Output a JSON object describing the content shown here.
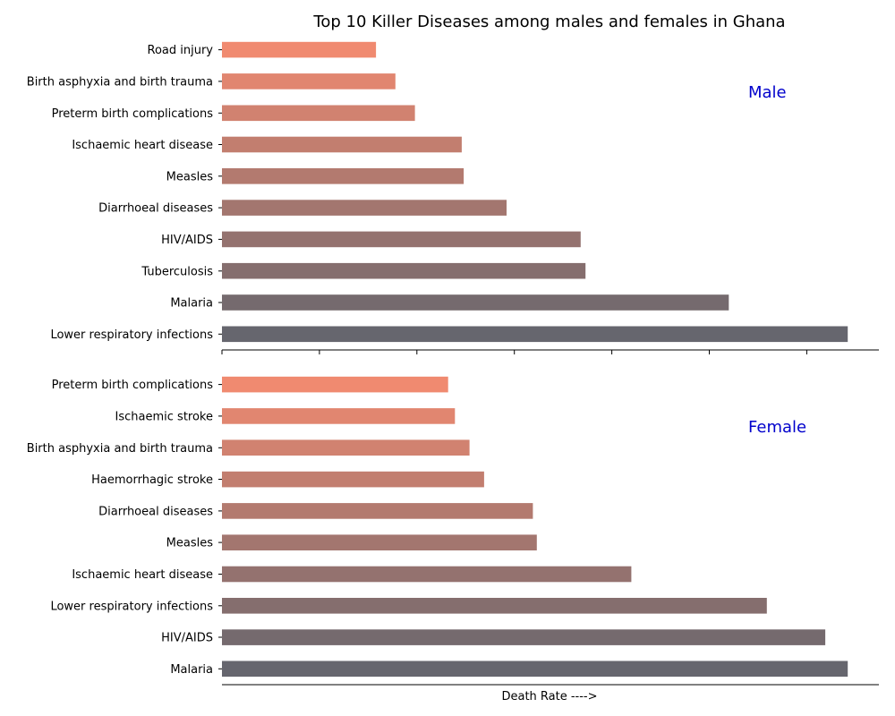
{
  "chart_data": {
    "type": "bar",
    "orientation": "horizontal",
    "title": "Top 10 Killer Diseases among males and females in Ghana",
    "xlabel": "Death Rate ---->",
    "label_color": "#0000cc",
    "color_top": "#f08a70",
    "color_bottom": "#66666e",
    "panels": [
      {
        "label": "Male",
        "categories": [
          "Road injury",
          "Birth asphyxia and birth trauma",
          "Preterm birth complications",
          "Ischaemic heart disease",
          "Measles",
          "Diarrhoeal diseases",
          "HIV/AIDS",
          "Tuberculosis",
          "Malaria",
          "Lower respiratory infections"
        ],
        "values": [
          15.8,
          17.8,
          19.8,
          24.6,
          24.8,
          29.2,
          36.8,
          37.3,
          52.0,
          64.2
        ],
        "xlim": [
          0,
          67.4
        ]
      },
      {
        "label": "Female",
        "categories": [
          "Preterm birth complications",
          "Ischaemic stroke",
          "Birth asphyxia and birth trauma",
          "Haemorrhagic stroke",
          "Diarrhoeal diseases",
          "Measles",
          "Ischaemic heart disease",
          "Lower respiratory infections",
          "HIV/AIDS",
          "Malaria"
        ],
        "values": [
          23.2,
          23.9,
          25.4,
          26.9,
          31.9,
          32.3,
          42.0,
          55.9,
          61.9,
          64.2
        ],
        "xlim": [
          0,
          67.4
        ]
      }
    ]
  }
}
